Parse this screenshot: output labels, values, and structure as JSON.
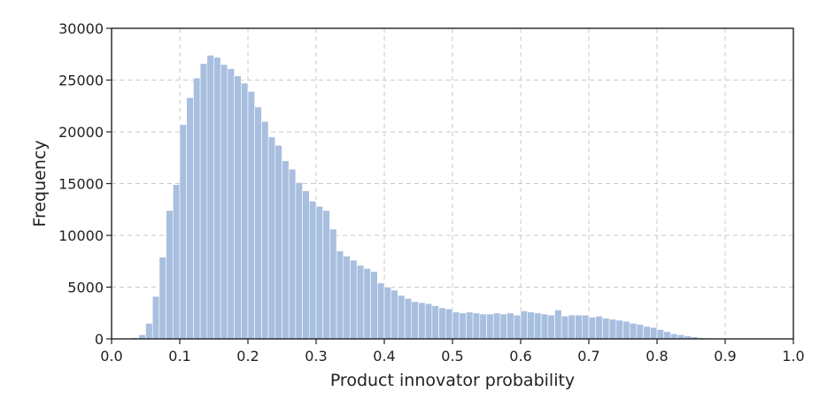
{
  "chart_data": {
    "type": "bar",
    "title": "",
    "xlabel": "Product innovator probability",
    "ylabel": "Frequency",
    "xlim": [
      0.0,
      1.0
    ],
    "ylim": [
      0,
      30000
    ],
    "xticks": [
      0.0,
      0.1,
      0.2,
      0.3,
      0.4,
      0.5,
      0.6,
      0.7,
      0.8,
      0.9,
      1.0
    ],
    "xtick_labels": [
      "0.0",
      "0.1",
      "0.2",
      "0.3",
      "0.4",
      "0.5",
      "0.6",
      "0.7",
      "0.8",
      "0.9",
      "1.0"
    ],
    "yticks": [
      0,
      5000,
      10000,
      15000,
      20000,
      25000,
      30000
    ],
    "ytick_labels": [
      "0",
      "5000",
      "10000",
      "15000",
      "20000",
      "25000",
      "30000"
    ],
    "grid": true,
    "bar_color": "#a9bfe0",
    "bin_width": 0.01,
    "bin_starts": [
      0.03,
      0.04,
      0.05,
      0.06,
      0.07,
      0.08,
      0.09,
      0.1,
      0.11,
      0.12,
      0.13,
      0.14,
      0.15,
      0.16,
      0.17,
      0.18,
      0.19,
      0.2,
      0.21,
      0.22,
      0.23,
      0.24,
      0.25,
      0.26,
      0.27,
      0.28,
      0.29,
      0.3,
      0.31,
      0.32,
      0.33,
      0.34,
      0.35,
      0.36,
      0.37,
      0.38,
      0.39,
      0.4,
      0.41,
      0.42,
      0.43,
      0.44,
      0.45,
      0.46,
      0.47,
      0.48,
      0.49,
      0.5,
      0.51,
      0.52,
      0.53,
      0.54,
      0.55,
      0.56,
      0.57,
      0.58,
      0.59,
      0.6,
      0.61,
      0.62,
      0.63,
      0.64,
      0.65,
      0.66,
      0.67,
      0.68,
      0.69,
      0.7,
      0.71,
      0.72,
      0.73,
      0.74,
      0.75,
      0.76,
      0.77,
      0.78,
      0.79,
      0.8,
      0.81,
      0.82,
      0.83,
      0.84,
      0.85,
      0.86,
      0.87,
      0.88,
      0.89
    ],
    "values": [
      100,
      400,
      1500,
      4100,
      7900,
      12400,
      14900,
      20700,
      23300,
      25200,
      26600,
      27400,
      27200,
      26500,
      26100,
      25400,
      24700,
      23900,
      22400,
      21000,
      19500,
      18700,
      17200,
      16400,
      15100,
      14300,
      13300,
      12800,
      12400,
      10600,
      8500,
      8000,
      7600,
      7100,
      6800,
      6500,
      5400,
      5000,
      4700,
      4200,
      3900,
      3600,
      3500,
      3400,
      3200,
      3000,
      2900,
      2600,
      2500,
      2600,
      2500,
      2400,
      2400,
      2500,
      2400,
      2500,
      2300,
      2700,
      2600,
      2500,
      2400,
      2300,
      2800,
      2200,
      2300,
      2300,
      2300,
      2100,
      2200,
      2000,
      1900,
      1800,
      1700,
      1500,
      1400,
      1200,
      1100,
      900,
      700,
      500,
      400,
      300,
      200,
      120,
      80,
      40,
      20
    ]
  }
}
